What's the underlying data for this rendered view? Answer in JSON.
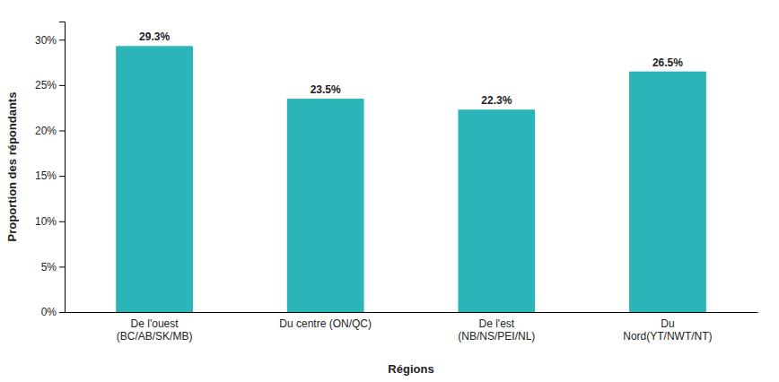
{
  "chart_data": {
    "type": "bar",
    "xlabel": "Régions",
    "ylabel": "Proportion des répondants",
    "categories": [
      "De l'ouest\n(BC/AB/SK/MB)",
      "Du centre (ON/QC)",
      "De l'est\n(NB/NS/PEI/NL)",
      "Du\nNord(YT/NWT/NT)"
    ],
    "values": [
      29.3,
      23.5,
      22.3,
      26.5
    ],
    "value_labels": [
      "29.3%",
      "23.5%",
      "22.3%",
      "26.5%"
    ],
    "data_labels": true,
    "color": "#2BB5B8",
    "ylim": [
      0,
      32
    ],
    "yticks": [
      {
        "value": 0,
        "label": "0%"
      },
      {
        "value": 5,
        "label": "5%"
      },
      {
        "value": 10,
        "label": "10%"
      },
      {
        "value": 15,
        "label": "15%"
      },
      {
        "value": 20,
        "label": "20%"
      },
      {
        "value": 25,
        "label": "25%"
      },
      {
        "value": 30,
        "label": "30%"
      }
    ],
    "grid": false
  }
}
